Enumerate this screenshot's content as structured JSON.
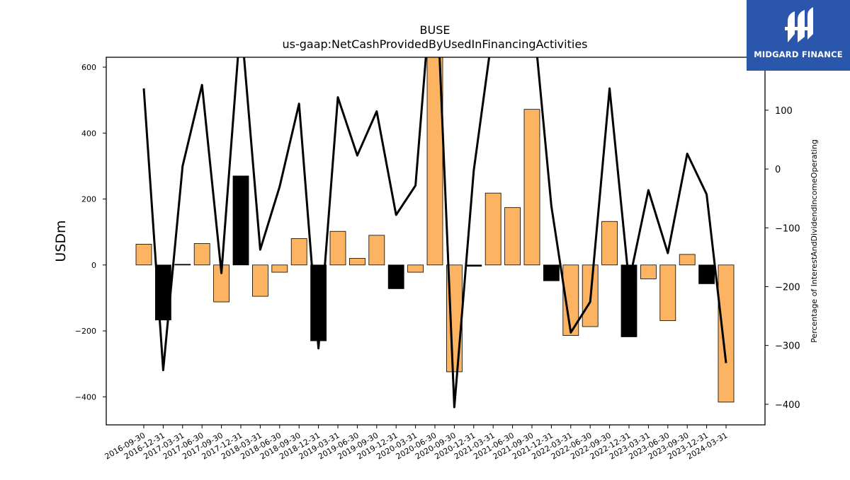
{
  "brand": {
    "name": "MIDGARD FINANCE",
    "bg_color": "#2a56ac",
    "icon": "midgard-logo-icon"
  },
  "chart_data": {
    "type": "bar",
    "title": "BUSE",
    "subtitle": "us-gaap:NetCashProvidedByUsedInFinancingActivities",
    "ylabel": "USDm",
    "y2label": "Percentage of InterestAndDividendIncomeOperating",
    "ylim": [
      -485,
      630
    ],
    "y2lim": [
      -435,
      190
    ],
    "yticks": [
      -400,
      -200,
      0,
      200,
      400,
      600
    ],
    "y2ticks": [
      -400,
      -300,
      -200,
      -100,
      0,
      100
    ],
    "categories": [
      "2016-09-30",
      "2016-12-31",
      "2017-03-31",
      "2017-06-30",
      "2017-09-30",
      "2017-12-31",
      "2018-03-31",
      "2018-06-30",
      "2018-09-30",
      "2018-12-31",
      "2019-03-31",
      "2019-06-30",
      "2019-09-30",
      "2019-12-31",
      "2020-03-31",
      "2020-06-30",
      "2020-09-30",
      "2020-12-31",
      "2021-03-31",
      "2021-06-30",
      "2021-09-30",
      "2021-12-31",
      "2022-03-31",
      "2022-06-30",
      "2022-09-30",
      "2022-12-31",
      "2023-03-31",
      "2023-06-30",
      "2023-09-30",
      "2023-12-31",
      "2024-03-31"
    ],
    "series": [
      {
        "type": "bar",
        "axis": "left",
        "values": [
          63,
          -167,
          2,
          65,
          -112,
          270,
          -95,
          -22,
          80,
          -230,
          102,
          20,
          90,
          -72,
          -22,
          670,
          -324,
          -4,
          218,
          174,
          472,
          -48,
          -214,
          -187,
          132,
          -218,
          -42,
          -169,
          32,
          -57,
          -416
        ],
        "colors": [
          "#fdb462",
          "#000000",
          "#000000",
          "#fdb462",
          "#fdb462",
          "#000000",
          "#fdb462",
          "#fdb462",
          "#fdb462",
          "#000000",
          "#fdb462",
          "#fdb462",
          "#fdb462",
          "#000000",
          "#fdb462",
          "#fdb462",
          "#fdb462",
          "#000000",
          "#fdb462",
          "#fdb462",
          "#fdb462",
          "#000000",
          "#fdb462",
          "#fdb462",
          "#fdb462",
          "#000000",
          "#fdb462",
          "#fdb462",
          "#fdb462",
          "#000000",
          "#fdb462"
        ]
      },
      {
        "type": "line",
        "axis": "right",
        "color": "#000000",
        "values": [
          137,
          -342,
          5,
          143,
          -177,
          255,
          -137,
          -30,
          111,
          -305,
          122,
          23,
          98,
          -78,
          -28,
          380,
          -405,
          -3,
          240,
          230,
          285,
          -63,
          -278,
          -226,
          137,
          -193,
          -36,
          -143,
          26,
          -43,
          -330
        ]
      }
    ],
    "grid": false,
    "legend": "none",
    "colors": {
      "orange": "#fdb462",
      "black": "#000000"
    }
  }
}
